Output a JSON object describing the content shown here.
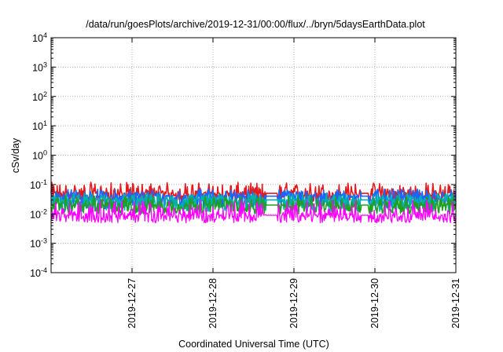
{
  "chart_data": {
    "type": "line",
    "title": "/data/run/goesPlots/archive/2019-12-31/00:00/flux/../bryn/5daysEarthData.plot",
    "xlabel": "Coordinated Universal Time (UTC)",
    "ylabel": "cSv/day",
    "yscale": "log",
    "ylim": [
      0.0001,
      10000
    ],
    "xlim": [
      "2019-12-26",
      "2019-12-31"
    ],
    "grid": true,
    "y_ticks": [
      {
        "base": "10",
        "exp": "-4"
      },
      {
        "base": "10",
        "exp": "-3"
      },
      {
        "base": "10",
        "exp": "-2"
      },
      {
        "base": "10",
        "exp": "-1"
      },
      {
        "base": "10",
        "exp": "0"
      },
      {
        "base": "10",
        "exp": "1"
      },
      {
        "base": "10",
        "exp": "2"
      },
      {
        "base": "10",
        "exp": "3"
      },
      {
        "base": "10",
        "exp": "4"
      }
    ],
    "x_ticks": [
      "2019-12-27",
      "2019-12-28",
      "2019-12-29",
      "2019-12-30",
      "2019-12-31"
    ],
    "series": [
      {
        "color": "#e41a1c",
        "typical": 0.05,
        "range": [
          0.025,
          0.12
        ]
      },
      {
        "color": "#1a66ff",
        "typical": 0.04,
        "range": [
          0.015,
          0.07
        ]
      },
      {
        "color": "#00b0b0",
        "typical": 0.03,
        "range": [
          0.012,
          0.05
        ]
      },
      {
        "color": "#20a020",
        "typical": 0.02,
        "range": [
          0.01,
          0.04
        ]
      },
      {
        "color": "#ff00ff",
        "typical": 0.009,
        "range": [
          0.005,
          0.03
        ]
      }
    ]
  }
}
